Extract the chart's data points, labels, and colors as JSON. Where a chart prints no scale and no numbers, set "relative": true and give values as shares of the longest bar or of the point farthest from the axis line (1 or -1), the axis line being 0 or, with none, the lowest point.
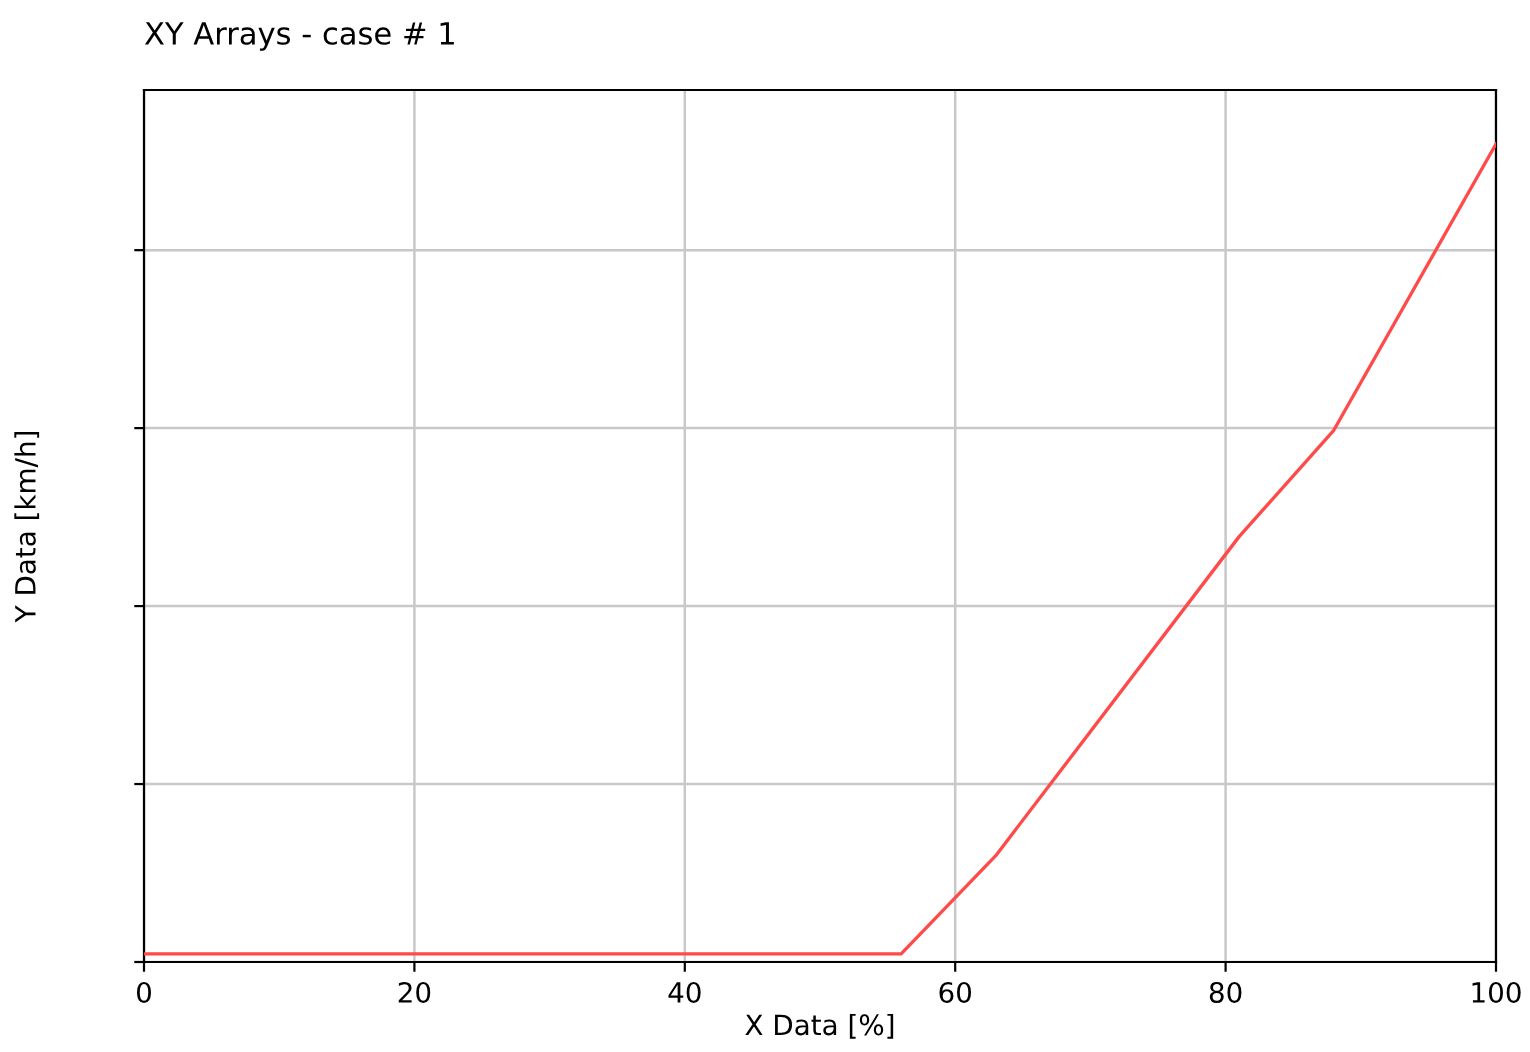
{
  "chart_data": {
    "type": "line",
    "title": "XY Arrays - case # 1",
    "xlabel": "X Data [%]",
    "ylabel": "Y Data [km/h]",
    "relative": true,
    "xlim": [
      0,
      100
    ],
    "xticks": [
      0,
      20,
      40,
      60,
      80,
      100
    ],
    "grid": true,
    "series": [
      {
        "color": "#ff4a4a",
        "x": [
          0,
          56,
          63,
          81,
          88,
          100
        ],
        "values": [
          0.01,
          0.01,
          0.13,
          0.52,
          0.65,
          1.0
        ]
      }
    ]
  }
}
